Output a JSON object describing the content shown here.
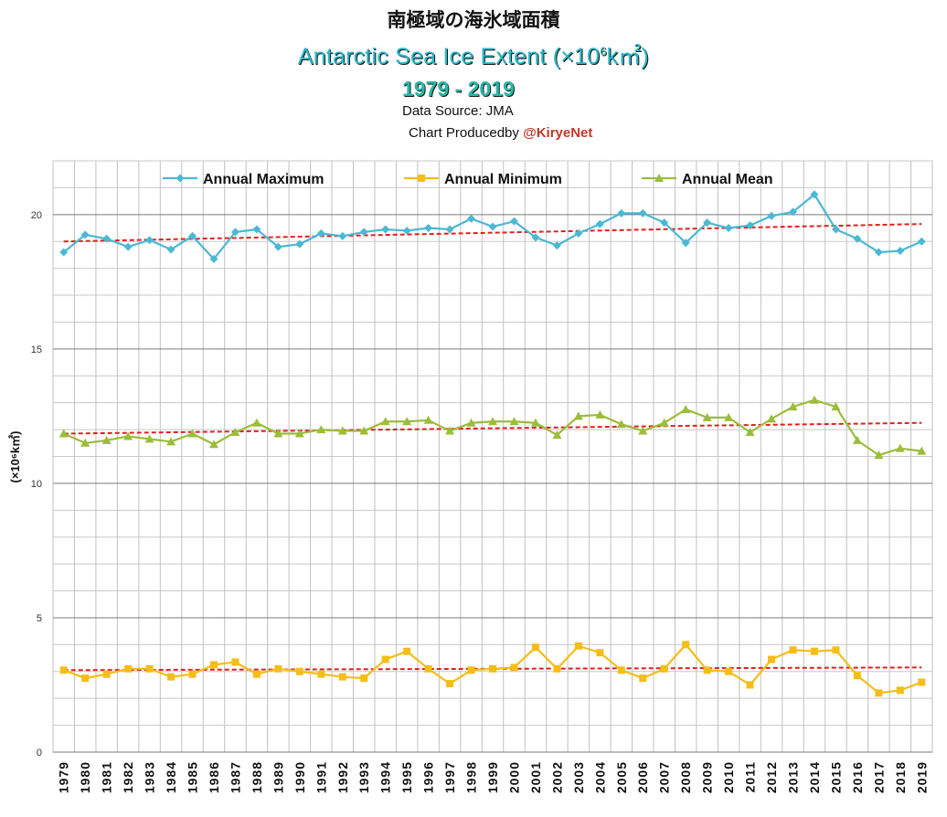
{
  "title_jp": "南極域の海氷域面積",
  "title_en": "Antarctic Sea Ice Extent (×10",
  "title_en_sup": "6",
  "title_en_unit": "k㎡)",
  "years_label": "1979 - 2019",
  "source_label": "Data Source: JMA",
  "credit_prefix": "Chart Producedby ",
  "credit_handle": "@KiryeNet",
  "chart_data": {
    "type": "line",
    "ylabel": "(×10⁶k㎡)",
    "ylim": [
      0,
      22
    ],
    "yticks": [
      0,
      5,
      10,
      15,
      20
    ],
    "grid": true,
    "legend_position": "top",
    "x": [
      1979,
      1980,
      1981,
      1982,
      1983,
      1984,
      1985,
      1986,
      1987,
      1988,
      1989,
      1990,
      1991,
      1992,
      1993,
      1994,
      1995,
      1996,
      1997,
      1998,
      1999,
      2000,
      2001,
      2002,
      2003,
      2004,
      2005,
      2006,
      2007,
      2008,
      2009,
      2010,
      2011,
      2012,
      2013,
      2014,
      2015,
      2016,
      2017,
      2018,
      2019
    ],
    "series": [
      {
        "name": "Annual Maximum",
        "color": "#4bb8d4",
        "marker": "diamond",
        "values": [
          18.6,
          19.25,
          19.1,
          18.8,
          19.05,
          18.7,
          19.2,
          18.35,
          19.35,
          19.45,
          18.8,
          18.9,
          19.3,
          19.2,
          19.35,
          19.45,
          19.4,
          19.5,
          19.45,
          19.85,
          19.55,
          19.75,
          19.15,
          18.85,
          19.3,
          19.65,
          20.05,
          20.05,
          19.7,
          18.95,
          19.7,
          19.5,
          19.6,
          19.95,
          20.1,
          20.75,
          19.45,
          19.1,
          18.6,
          18.65,
          19.0
        ],
        "trend": [
          19.0,
          19.65
        ]
      },
      {
        "name": "Annual Minimum",
        "color": "#f5bd18",
        "marker": "square",
        "values": [
          3.05,
          2.75,
          2.9,
          3.1,
          3.1,
          2.8,
          2.9,
          3.25,
          3.35,
          2.9,
          3.1,
          3.0,
          2.9,
          2.8,
          2.75,
          3.45,
          3.75,
          3.1,
          2.55,
          3.05,
          3.1,
          3.15,
          3.9,
          3.1,
          3.95,
          3.7,
          3.05,
          2.75,
          3.1,
          4.0,
          3.05,
          3.0,
          2.5,
          3.45,
          3.8,
          3.75,
          3.8,
          2.85,
          2.2,
          2.3,
          2.6
        ],
        "trend": [
          3.05,
          3.15
        ]
      },
      {
        "name": "Annual Mean",
        "color": "#9bbd3a",
        "marker": "triangle",
        "values": [
          11.85,
          11.5,
          11.6,
          11.75,
          11.65,
          11.55,
          11.85,
          11.45,
          11.9,
          12.25,
          11.85,
          11.85,
          12.0,
          11.95,
          11.95,
          12.3,
          12.3,
          12.35,
          11.95,
          12.25,
          12.3,
          12.3,
          12.25,
          11.8,
          12.5,
          12.55,
          12.2,
          11.95,
          12.25,
          12.75,
          12.45,
          12.45,
          11.9,
          12.4,
          12.85,
          13.1,
          12.85,
          11.6,
          11.05,
          11.3,
          11.2
        ],
        "trend": [
          11.85,
          12.25
        ]
      }
    ],
    "trend_color": "#e02020"
  }
}
